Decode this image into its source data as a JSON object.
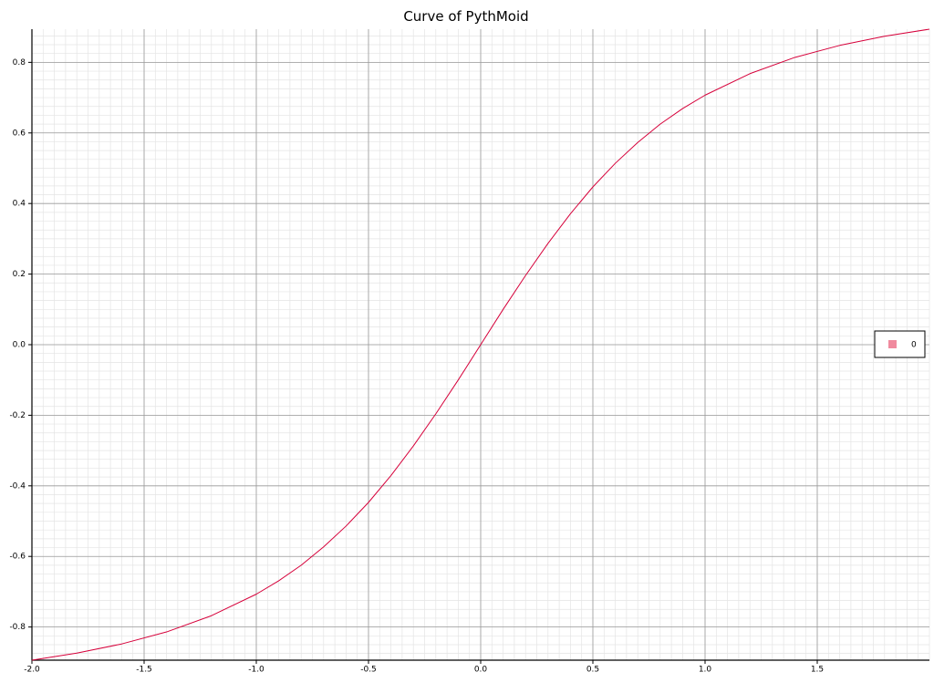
{
  "chart_data": {
    "type": "line",
    "title": "Curve of PythMoid",
    "xlabel": "",
    "ylabel": "",
    "xlim": [
      -2.0,
      2.0
    ],
    "ylim": [
      -0.894,
      0.894
    ],
    "x_ticks": [
      -2.0,
      -1.5,
      -1.0,
      -0.5,
      0.0,
      0.5,
      1.0,
      1.5
    ],
    "x_tick_labels": [
      "-2.0",
      "-1.5",
      "-1.0",
      "-0.5",
      "0.0",
      "0.5",
      "1.0",
      "1.5"
    ],
    "y_ticks": [
      -0.8,
      -0.6,
      -0.4,
      -0.2,
      0.0,
      0.2,
      0.4,
      0.6,
      0.8
    ],
    "y_tick_labels": [
      "-0.8",
      "-0.6",
      "-0.4",
      "-0.2",
      "0.0",
      "0.2",
      "0.4",
      "0.6",
      "0.8"
    ],
    "grid": true,
    "legend_position": "right",
    "series": [
      {
        "name": "0",
        "color": "#d6003a",
        "legend_color": "#f08a9e",
        "x": [
          -2.0,
          -1.8,
          -1.6,
          -1.4,
          -1.2,
          -1.0,
          -0.9,
          -0.8,
          -0.7,
          -0.6,
          -0.5,
          -0.4,
          -0.3,
          -0.2,
          -0.1,
          0.0,
          0.1,
          0.2,
          0.3,
          0.4,
          0.5,
          0.6,
          0.7,
          0.8,
          0.9,
          1.0,
          1.2,
          1.4,
          1.6,
          1.8,
          2.0
        ],
        "y": [
          -0.894,
          -0.874,
          -0.848,
          -0.814,
          -0.768,
          -0.707,
          -0.669,
          -0.625,
          -0.573,
          -0.514,
          -0.447,
          -0.371,
          -0.287,
          -0.196,
          -0.1,
          0.0,
          0.1,
          0.196,
          0.287,
          0.371,
          0.447,
          0.514,
          0.573,
          0.625,
          0.669,
          0.707,
          0.768,
          0.814,
          0.848,
          0.874,
          0.894
        ]
      }
    ]
  }
}
